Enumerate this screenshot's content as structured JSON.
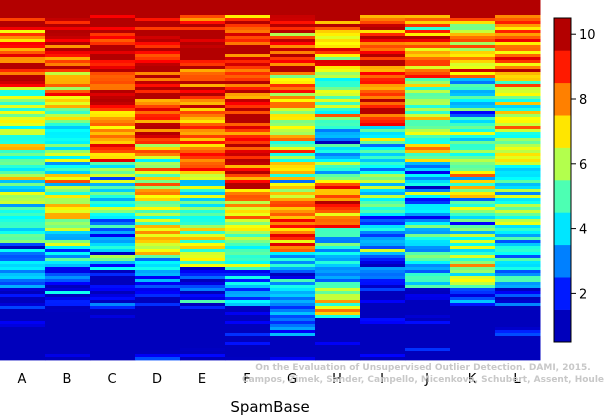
{
  "chart_data": {
    "type": "heatmap",
    "title": "",
    "xlabel": "SpamBase",
    "ylabel": "",
    "columns": [
      "A",
      "B",
      "C",
      "D",
      "E",
      "F",
      "G",
      "H",
      "I",
      "J",
      "K",
      "L"
    ],
    "colorbar": {
      "min": 0.5,
      "max": 10.5,
      "ticks": [
        2,
        4,
        6,
        8,
        10
      ],
      "colormap": [
        "#00008f",
        "#0000ff",
        "#0080ff",
        "#00ffff",
        "#80ff80",
        "#ffff00",
        "#ff8000",
        "#ff0000",
        "#800000"
      ],
      "discrete_levels": 10
    },
    "column_profiles": [
      {
        "name": "A",
        "segments": [
          [
            0.0,
            0.07,
            10
          ],
          [
            0.07,
            0.15,
            8
          ],
          [
            0.15,
            0.24,
            9
          ],
          [
            0.24,
            0.42,
            6
          ],
          [
            0.42,
            0.57,
            5
          ],
          [
            0.57,
            0.72,
            4
          ],
          [
            0.72,
            0.8,
            3
          ],
          [
            0.8,
            1.0,
            1
          ]
        ]
      },
      {
        "name": "B",
        "segments": [
          [
            0.0,
            0.08,
            10
          ],
          [
            0.08,
            0.2,
            9
          ],
          [
            0.2,
            0.3,
            7
          ],
          [
            0.3,
            0.48,
            5
          ],
          [
            0.48,
            0.64,
            6
          ],
          [
            0.64,
            0.74,
            4
          ],
          [
            0.74,
            0.8,
            2
          ],
          [
            0.8,
            1.0,
            1
          ]
        ]
      },
      {
        "name": "C",
        "segments": [
          [
            0.0,
            0.2,
            10
          ],
          [
            0.2,
            0.3,
            9
          ],
          [
            0.3,
            0.45,
            8
          ],
          [
            0.45,
            0.55,
            5
          ],
          [
            0.55,
            0.65,
            4
          ],
          [
            0.65,
            0.75,
            3
          ],
          [
            0.75,
            0.88,
            2
          ],
          [
            0.88,
            1.0,
            1
          ]
        ]
      },
      {
        "name": "D",
        "segments": [
          [
            0.0,
            0.2,
            10
          ],
          [
            0.2,
            0.4,
            9
          ],
          [
            0.4,
            0.55,
            7
          ],
          [
            0.55,
            0.72,
            6
          ],
          [
            0.72,
            0.82,
            3
          ],
          [
            0.82,
            1.0,
            1
          ]
        ]
      },
      {
        "name": "E",
        "segments": [
          [
            0.0,
            0.17,
            10
          ],
          [
            0.17,
            0.3,
            9
          ],
          [
            0.3,
            0.48,
            8
          ],
          [
            0.48,
            0.62,
            5
          ],
          [
            0.62,
            0.74,
            6
          ],
          [
            0.74,
            0.85,
            2
          ],
          [
            0.85,
            1.0,
            1
          ]
        ]
      },
      {
        "name": "F",
        "segments": [
          [
            0.0,
            0.07,
            10
          ],
          [
            0.07,
            0.3,
            9
          ],
          [
            0.3,
            0.55,
            9
          ],
          [
            0.55,
            0.65,
            7
          ],
          [
            0.65,
            0.75,
            5
          ],
          [
            0.75,
            0.85,
            3
          ],
          [
            0.85,
            1.0,
            1
          ]
        ]
      },
      {
        "name": "G",
        "segments": [
          [
            0.0,
            0.09,
            10
          ],
          [
            0.09,
            0.2,
            9
          ],
          [
            0.2,
            0.4,
            7
          ],
          [
            0.4,
            0.55,
            6
          ],
          [
            0.55,
            0.7,
            8
          ],
          [
            0.7,
            0.8,
            4
          ],
          [
            0.8,
            0.93,
            3
          ],
          [
            0.93,
            1.0,
            1
          ]
        ]
      },
      {
        "name": "H",
        "segments": [
          [
            0.0,
            0.06,
            10
          ],
          [
            0.06,
            0.2,
            8
          ],
          [
            0.2,
            0.35,
            5
          ],
          [
            0.35,
            0.5,
            4
          ],
          [
            0.5,
            0.65,
            8
          ],
          [
            0.65,
            0.78,
            4
          ],
          [
            0.78,
            0.88,
            6
          ],
          [
            0.88,
            1.0,
            2
          ]
        ]
      },
      {
        "name": "I",
        "segments": [
          [
            0.0,
            0.03,
            10
          ],
          [
            0.03,
            0.35,
            9
          ],
          [
            0.35,
            0.48,
            4
          ],
          [
            0.48,
            0.6,
            5
          ],
          [
            0.6,
            0.78,
            3
          ],
          [
            0.78,
            1.0,
            1
          ]
        ]
      },
      {
        "name": "J",
        "segments": [
          [
            0.0,
            0.03,
            10
          ],
          [
            0.03,
            0.22,
            8
          ],
          [
            0.22,
            0.45,
            6
          ],
          [
            0.45,
            0.62,
            3
          ],
          [
            0.62,
            0.8,
            4
          ],
          [
            0.8,
            0.97,
            1
          ],
          [
            0.97,
            1.0,
            1
          ]
        ]
      },
      {
        "name": "K",
        "segments": [
          [
            0.0,
            0.05,
            10
          ],
          [
            0.05,
            0.22,
            7
          ],
          [
            0.22,
            0.4,
            4
          ],
          [
            0.4,
            0.6,
            6
          ],
          [
            0.6,
            0.8,
            5
          ],
          [
            0.8,
            1.0,
            1
          ]
        ]
      },
      {
        "name": "L",
        "segments": [
          [
            0.0,
            0.03,
            10
          ],
          [
            0.03,
            0.22,
            8
          ],
          [
            0.22,
            0.45,
            6
          ],
          [
            0.45,
            0.65,
            5
          ],
          [
            0.65,
            0.8,
            4
          ],
          [
            0.8,
            0.9,
            2
          ],
          [
            0.9,
            1.0,
            1
          ]
        ]
      }
    ]
  },
  "watermark": {
    "line1": "On the Evaluation of Unsupervised Outlier Detection. DAMI, 2015.",
    "line2": "Campos, Zimek, Sander, Campello, Micenkova, Schubert, Assent, Houle"
  }
}
